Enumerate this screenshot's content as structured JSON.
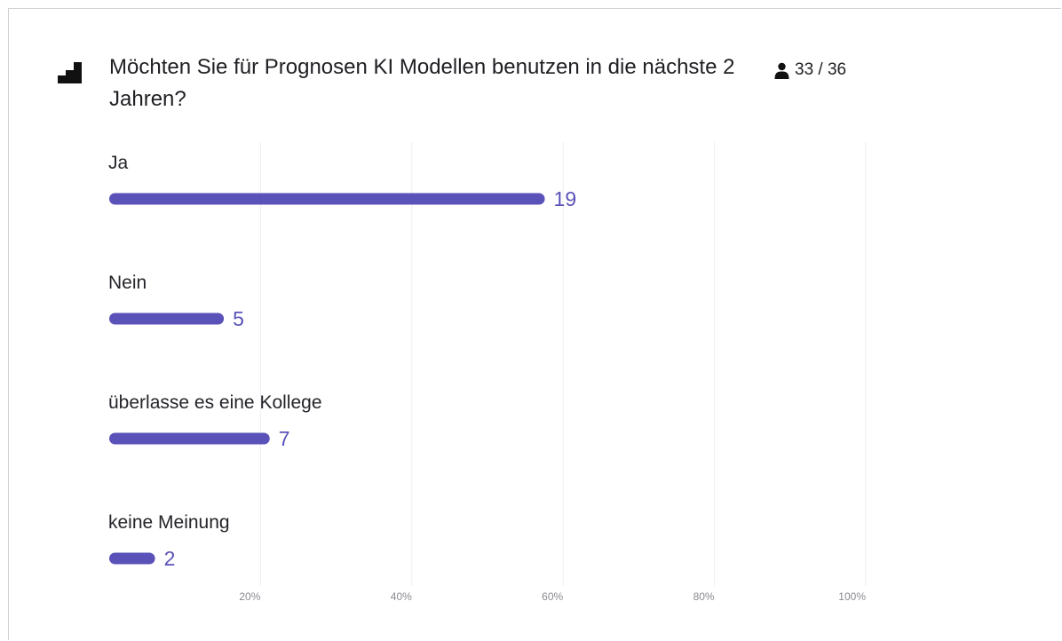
{
  "poll": {
    "question": "Möchten Sie für Prognosen KI Modellen benutzen  in die nächste 2 Jahren?",
    "respondents": "33 / 36"
  },
  "colors": {
    "bar": "#5a52b8",
    "gridline": "#eeeef2"
  },
  "chart_data": {
    "type": "bar",
    "orientation": "horizontal",
    "categories": [
      "Ja",
      "Nein",
      "überlasse es eine Kollege",
      "keine Meinung"
    ],
    "values": [
      19,
      5,
      7,
      2
    ],
    "value_labels": [
      "19",
      "5",
      "7",
      "2"
    ],
    "x_ticks": [
      "20%",
      "40%",
      "60%",
      "80%",
      "100%"
    ],
    "xlim_percent": [
      0,
      100
    ],
    "grid": true,
    "legend": "none"
  }
}
